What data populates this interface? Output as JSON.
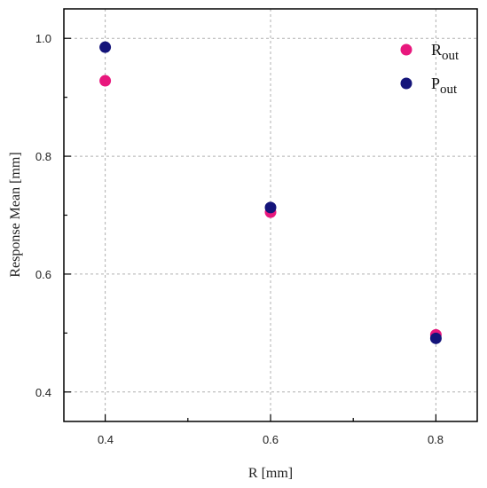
{
  "chart_data": {
    "type": "scatter",
    "xlabel": "R [mm]",
    "ylabel": "Response Mean [mm]",
    "xlim": [
      0.35,
      0.85
    ],
    "ylim": [
      0.35,
      1.05
    ],
    "x_ticks": [
      "0.4",
      "0.6",
      "0.8"
    ],
    "y_ticks": [
      "0.4",
      "0.6",
      "0.8",
      "1.0"
    ],
    "grid": true,
    "legend_position": "top-right",
    "series": [
      {
        "name": "R",
        "subscript": "out",
        "color": "#e8177d",
        "x": [
          0.4,
          0.6,
          0.8
        ],
        "y": [
          0.928,
          0.705,
          0.497
        ]
      },
      {
        "name": "P",
        "subscript": "out",
        "color": "#14147a",
        "x": [
          0.4,
          0.6,
          0.8
        ],
        "y": [
          0.985,
          0.713,
          0.491
        ]
      }
    ]
  }
}
